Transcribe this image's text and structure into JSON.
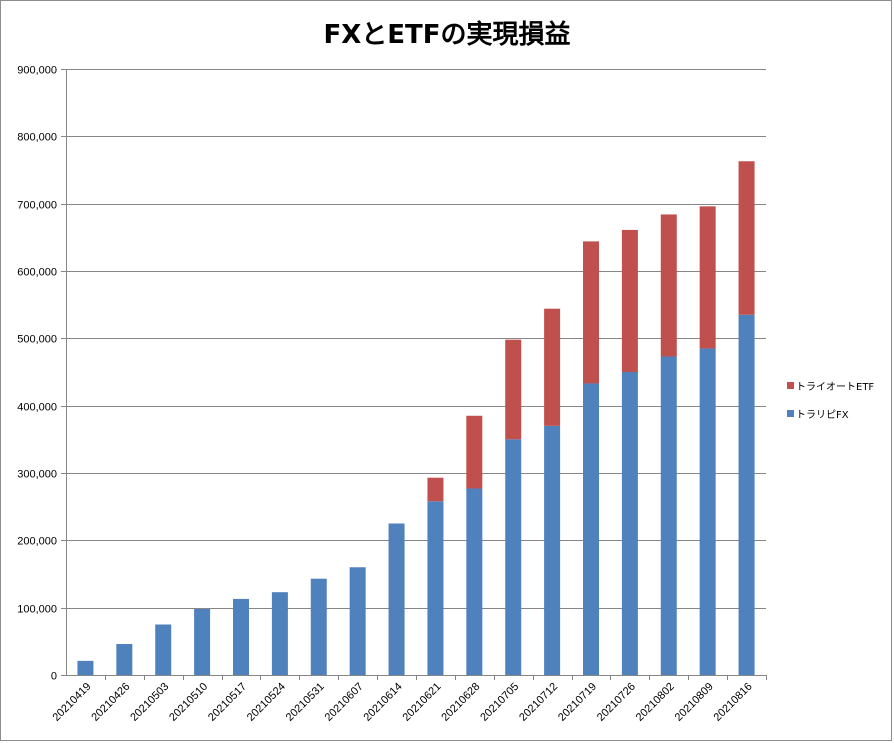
{
  "title": "FXとETFの実現損益",
  "colors": {
    "fx": "#4f81bd",
    "etf": "#c0504d",
    "grid": "#868686",
    "axis": "#868686"
  },
  "legend": [
    {
      "name": "トライオートETF",
      "color": "#c0504d"
    },
    {
      "name": "トラリピFX",
      "color": "#4f81bd"
    }
  ],
  "chart_data": {
    "type": "bar",
    "stacked": true,
    "title": "FXとETFの実現損益",
    "xlabel": "",
    "ylabel": "",
    "ylim": [
      0,
      900000
    ],
    "y_ticks": [
      0,
      100000,
      200000,
      300000,
      400000,
      500000,
      600000,
      700000,
      800000,
      900000
    ],
    "y_tick_labels": [
      "0",
      "100,000",
      "200,000",
      "300,000",
      "400,000",
      "500,000",
      "600,000",
      "700,000",
      "800,000",
      "900,000"
    ],
    "grid": true,
    "legend_position": "right",
    "categories": [
      "20210419",
      "20210426",
      "20210503",
      "20210510",
      "20210517",
      "20210524",
      "20210531",
      "20210607",
      "20210614",
      "20210621",
      "20210628",
      "20210705",
      "20210712",
      "20210719",
      "20210726",
      "20210802",
      "20210809",
      "20210816"
    ],
    "series": [
      {
        "name": "トラリピFX",
        "color": "#4f81bd",
        "values": [
          21000,
          46000,
          75000,
          98000,
          113000,
          123000,
          143000,
          160000,
          225000,
          258000,
          277000,
          350000,
          370000,
          433000,
          450000,
          473000,
          485000,
          535000
        ]
      },
      {
        "name": "トライオートETF",
        "color": "#c0504d",
        "values": [
          0,
          0,
          0,
          0,
          0,
          0,
          0,
          0,
          0,
          35000,
          108000,
          148000,
          174000,
          211000,
          211000,
          211000,
          211000,
          228000
        ]
      }
    ]
  }
}
